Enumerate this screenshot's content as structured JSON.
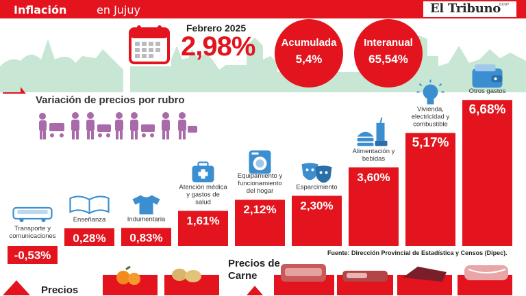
{
  "header": {
    "title_strong": "Inflación",
    "title_light": "en Jujuy",
    "logo": "El Tribuno",
    "logo_sup": "JUJUY"
  },
  "monthly": {
    "period": "Febrero 2025",
    "value": "2,98%"
  },
  "bubbles": [
    {
      "label": "Acumulada",
      "value": "5,4%"
    },
    {
      "label": "Interanual",
      "value": "65,54%"
    }
  ],
  "colors": {
    "accent": "#e3141d",
    "skyline": "#bfe3d0",
    "bottom_red": "#e3141d"
  },
  "chart_data": {
    "type": "bar",
    "title": "Variación de precios por rubro",
    "categories": [
      "Transporte y comunicaciones",
      "Enseñanza",
      "Indumentaria",
      "Atención médica y gastos de salud",
      "Equipamiento y funcionamiento del hogar",
      "Esparcimiento",
      "Alimentación y bebidas",
      "Vivienda, electricidad y combustible",
      "Otros gastos"
    ],
    "values": [
      -0.53,
      0.28,
      0.83,
      1.61,
      2.12,
      2.3,
      3.6,
      5.17,
      6.68
    ],
    "value_labels": [
      "-0,53%",
      "0,28%",
      "0,83%",
      "1,61%",
      "2,12%",
      "2,30%",
      "3,60%",
      "5,17%",
      "6,68%"
    ],
    "icons": [
      "bus-icon",
      "book-icon",
      "shirt-icon",
      "medical-kit-icon",
      "washing-machine-icon",
      "theater-masks-icon",
      "food-icon",
      "light-bulb-icon",
      "wallet-icon"
    ],
    "source": "Fuente: Dirección Provincial de Estadística y Censos (Dipec)."
  },
  "bottom": {
    "precios_left": "Precios",
    "precios_carne": "Precios de Carne"
  }
}
